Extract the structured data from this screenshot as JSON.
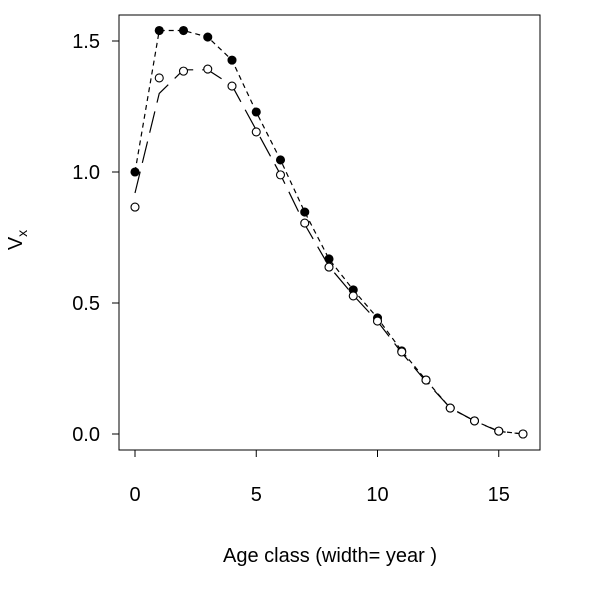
{
  "chart_data": {
    "type": "scatter",
    "title": "",
    "xlabel": "Age class (width= year )",
    "ylabel": "V",
    "ylabel_subscript": "x",
    "xlim": [
      0,
      16.6
    ],
    "ylim": [
      0,
      1.55
    ],
    "xticks": [
      0,
      5,
      10,
      15
    ],
    "xtick_labels": [
      "0",
      "5",
      "10",
      "15"
    ],
    "yticks": [
      0,
      0.5,
      1.0,
      1.5
    ],
    "ytick_labels": [
      "0.0",
      "0.5",
      "1.0",
      "1.5"
    ],
    "x": [
      0,
      1,
      2,
      3,
      4,
      5,
      6,
      7,
      8,
      9,
      10,
      11,
      12,
      13,
      14,
      15,
      16
    ],
    "series": [
      {
        "name": "filled points",
        "style": "filled",
        "values": [
          1.0,
          1.54,
          1.54,
          1.515,
          1.427,
          1.229,
          1.046,
          0.847,
          0.668,
          0.55,
          0.443,
          0.317,
          0.206,
          0.099,
          0.05,
          0.011,
          0.0
        ]
      },
      {
        "name": "open points",
        "style": "open",
        "values": [
          0.866,
          1.359,
          1.385,
          1.393,
          1.328,
          1.153,
          0.989,
          0.805,
          0.637,
          0.527,
          0.431,
          0.313,
          0.206,
          0.099,
          0.05,
          0.011,
          0.0
        ]
      },
      {
        "name": "dashed line",
        "style": "dashed",
        "values": [
          1.0,
          1.54,
          1.54,
          1.515,
          1.427,
          1.229,
          1.046,
          0.847,
          0.668,
          0.55,
          0.443,
          0.317,
          0.206,
          0.099,
          0.05,
          0.011,
          0.0
        ]
      },
      {
        "name": "long-dash line",
        "style": "longdash",
        "values": [
          0.92,
          1.3,
          1.39,
          1.39,
          1.33,
          1.16,
          0.99,
          0.8,
          0.64,
          0.53,
          0.43,
          0.31,
          0.2,
          0.1,
          0.05,
          0.01,
          0.0
        ]
      }
    ]
  }
}
